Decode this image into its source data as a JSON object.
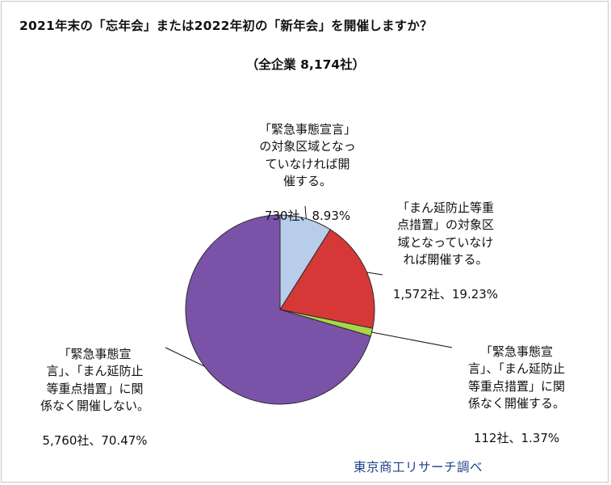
{
  "title": "2021年末の「忘年会」または2022年初の「新年会」を開催しますか？",
  "subtitle": "（全企業 8,174社）",
  "source": "東京商工リサーチ調べ",
  "chart_data": {
    "type": "pie",
    "title": "2021年末の「忘年会」または2022年初の「新年会」を開催しますか？",
    "subtitle": "（全企業 8,174社）",
    "total": 8174,
    "slices": [
      {
        "label": "「緊急事態宣言」\nの対象区域となっ\nていなければ開\n催する。",
        "value_label": "730社、8.93%",
        "count": 730,
        "percent": 8.93,
        "color": "#b7cdea"
      },
      {
        "label": "「まん延防止等重\n点措置」の対象区\n域となっていなけ\nれば開催する。",
        "value_label": "1,572社、19.23%",
        "count": 1572,
        "percent": 19.23,
        "color": "#d63838"
      },
      {
        "label": "「緊急事態宣\n言」、「まん延防止\n等重点措置」に関\n係なく開催する。",
        "value_label": "112社、1.37%",
        "count": 112,
        "percent": 1.37,
        "color": "#a9d64a"
      },
      {
        "label": "「緊急事態宣\n言」、「まん延防止\n等重点措置」に関\n係なく開催しない。",
        "value_label": "5,760社、70.47%",
        "count": 5760,
        "percent": 70.47,
        "color": "#7a53a8"
      }
    ]
  }
}
